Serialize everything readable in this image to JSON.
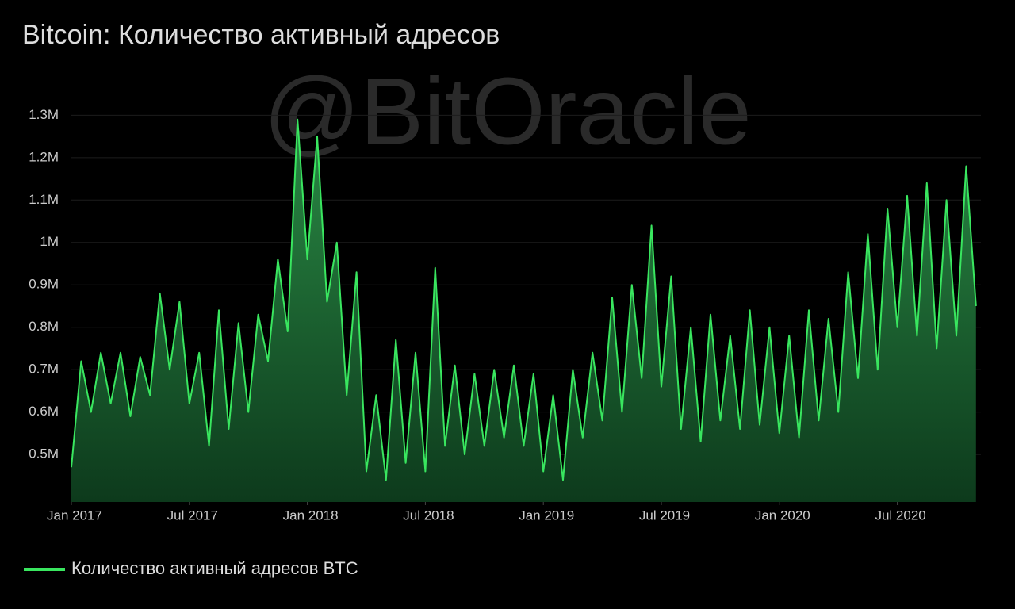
{
  "chart_data": {
    "type": "area",
    "title": "Bitcoin: Количество активный адресов",
    "watermark": "@BitOracle",
    "x": [
      0,
      0.5,
      1,
      1.5,
      2,
      2.5,
      3,
      3.5,
      4,
      4.5,
      5,
      5.5,
      6,
      6.5,
      7,
      7.5,
      8,
      8.5,
      9,
      9.5,
      10,
      10.5,
      11,
      11.5,
      12,
      12.5,
      13,
      13.5,
      14,
      14.5,
      15,
      15.5,
      16,
      16.5,
      17,
      17.5,
      18,
      18.5,
      19,
      19.5,
      20,
      20.5,
      21,
      21.5,
      22,
      22.5,
      23,
      23.5,
      24,
      24.5,
      25,
      25.5,
      26,
      26.5,
      27,
      27.5,
      28,
      28.5,
      29,
      29.5,
      30,
      30.5,
      31,
      31.5,
      32,
      32.5,
      33,
      33.5,
      34,
      34.5,
      35,
      35.5,
      36,
      36.5,
      37,
      37.5,
      38,
      38.5,
      39,
      39.5,
      40,
      40.5,
      41,
      41.5,
      42,
      42.5,
      43,
      43.5,
      44,
      44.5,
      45,
      45.5,
      46
    ],
    "series": [
      {
        "name": "Количество активный адресов BTC",
        "color": "#39e65f",
        "values": [
          470000,
          720000,
          600000,
          740000,
          620000,
          740000,
          590000,
          730000,
          640000,
          880000,
          700000,
          860000,
          620000,
          740000,
          520000,
          840000,
          560000,
          810000,
          600000,
          830000,
          720000,
          960000,
          790000,
          1290000,
          960000,
          1250000,
          860000,
          1000000,
          640000,
          930000,
          460000,
          640000,
          440000,
          770000,
          480000,
          740000,
          460000,
          940000,
          520000,
          710000,
          500000,
          690000,
          520000,
          700000,
          540000,
          710000,
          520000,
          690000,
          460000,
          640000,
          440000,
          700000,
          540000,
          740000,
          580000,
          870000,
          600000,
          900000,
          680000,
          1040000,
          660000,
          920000,
          560000,
          800000,
          530000,
          830000,
          580000,
          780000,
          560000,
          840000,
          570000,
          800000,
          550000,
          780000,
          540000,
          840000,
          580000,
          820000,
          600000,
          930000,
          680000,
          1020000,
          700000,
          1080000,
          800000,
          1110000,
          780000,
          1140000,
          750000,
          1100000,
          780000,
          1180000,
          850000
        ]
      }
    ],
    "xlim": [
      0,
      46.25
    ],
    "xticks": [
      {
        "value": 0,
        "label": "Jan 2017"
      },
      {
        "value": 6,
        "label": "Jul 2017"
      },
      {
        "value": 12,
        "label": "Jan 2018"
      },
      {
        "value": 18,
        "label": "Jul 2018"
      },
      {
        "value": 24,
        "label": "Jan 2019"
      },
      {
        "value": 30,
        "label": "Jul 2019"
      },
      {
        "value": 36,
        "label": "Jan 2020"
      },
      {
        "value": 42,
        "label": "Jul 2020"
      }
    ],
    "ylim": [
      388000,
      1310000
    ],
    "yticks": [
      {
        "value": 500000,
        "label": "0.5M"
      },
      {
        "value": 600000,
        "label": "0.6M"
      },
      {
        "value": 700000,
        "label": "0.7M"
      },
      {
        "value": 800000,
        "label": "0.8M"
      },
      {
        "value": 900000,
        "label": "0.9M"
      },
      {
        "value": 1000000,
        "label": "1M"
      },
      {
        "value": 1100000,
        "label": "1.1M"
      },
      {
        "value": 1200000,
        "label": "1.2M"
      },
      {
        "value": 1300000,
        "label": "1.3M"
      }
    ],
    "grid": true
  }
}
